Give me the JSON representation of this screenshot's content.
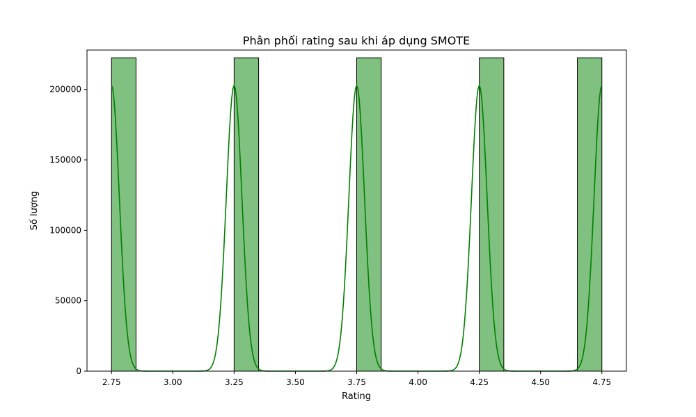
{
  "chart_data": {
    "type": "bar",
    "title": "Phân phối rating sau khi áp dụng SMOTE",
    "xlabel": "Rating",
    "ylabel": "Số lượng",
    "xlim": [
      2.65,
      4.85
    ],
    "ylim": [
      0,
      228000
    ],
    "xticks": [
      2.75,
      3.0,
      3.25,
      3.5,
      3.75,
      4.0,
      4.25,
      4.5,
      4.75
    ],
    "xtick_labels": [
      "2.75",
      "3.00",
      "3.25",
      "3.50",
      "3.75",
      "4.00",
      "4.25",
      "4.50",
      "4.75"
    ],
    "yticks": [
      0,
      50000,
      100000,
      150000,
      200000
    ],
    "ytick_labels": [
      "0",
      "50000",
      "100000",
      "150000",
      "200000"
    ],
    "bars": [
      {
        "x_start": 2.75,
        "x_end": 2.85,
        "value": 222500
      },
      {
        "x_start": 3.25,
        "x_end": 3.35,
        "value": 222500
      },
      {
        "x_start": 3.75,
        "x_end": 3.85,
        "value": 222500
      },
      {
        "x_start": 4.25,
        "x_end": 4.35,
        "value": 222500
      },
      {
        "x_start": 4.65,
        "x_end": 4.75,
        "value": 222500
      }
    ],
    "kde": {
      "peaks": [
        2.75,
        3.25,
        3.75,
        4.25,
        4.75
      ],
      "peak_value": 203000,
      "bandwidth": 0.032,
      "x_range": [
        2.75,
        4.75
      ]
    },
    "colors": {
      "bar_fill": "#80c080",
      "bar_edge": "#000000",
      "kde_line": "#008000"
    },
    "grid": false,
    "legend": "none"
  }
}
